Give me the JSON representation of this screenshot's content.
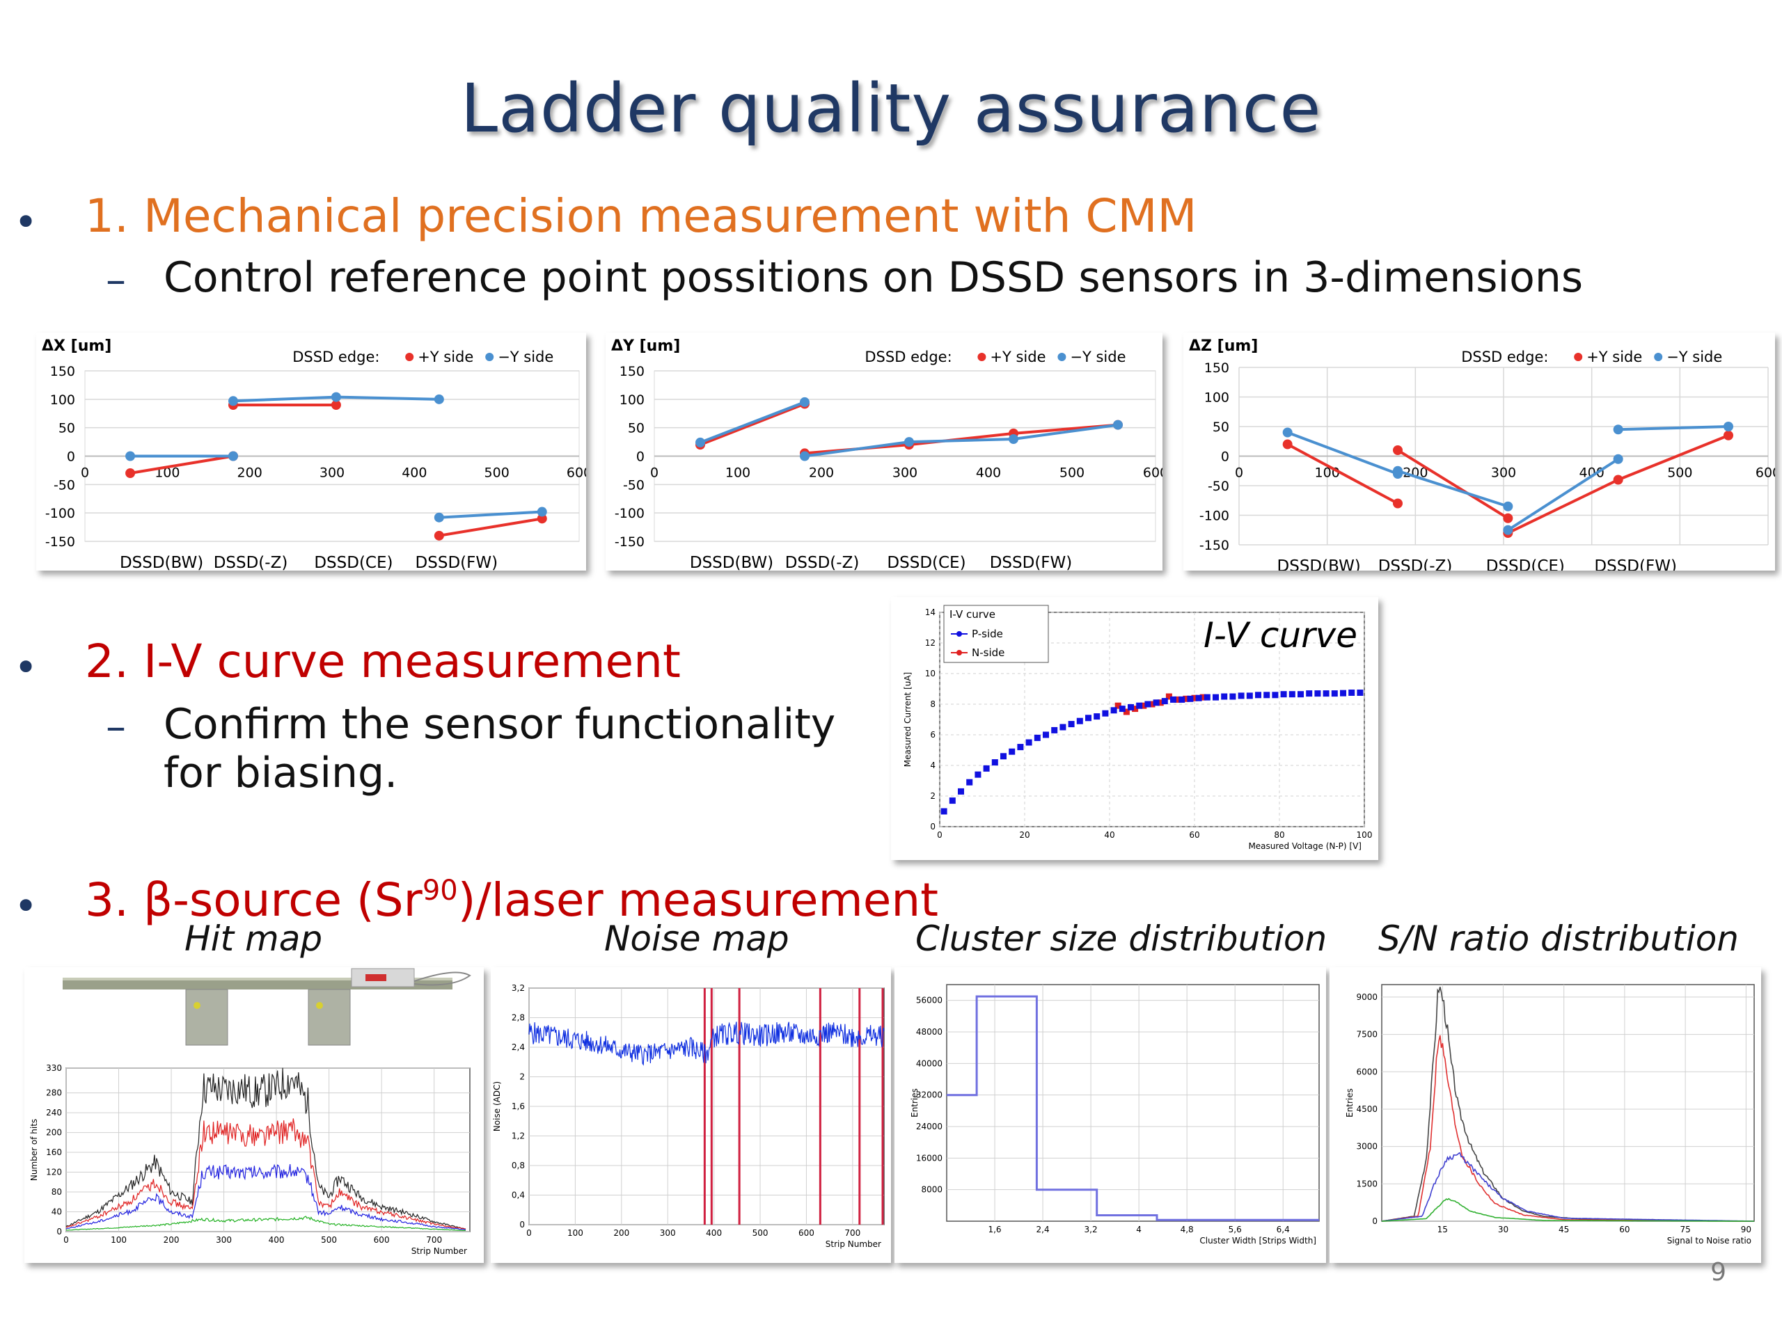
{
  "slide": {
    "title": "Ladder quality assurance",
    "page_number": "9",
    "sections": [
      {
        "bullet": "•",
        "heading": "1. Mechanical precision measurement with CMM",
        "dash": "–",
        "sub": "Control reference point possitions on DSSD sensors in 3-dimensions",
        "color": "#e07020"
      },
      {
        "bullet": "•",
        "heading": "2. I-V curve measurement",
        "dash": "–",
        "sub_line1": "Confirm the sensor functionality",
        "sub_line2": "for biasing.",
        "color": "#c00000"
      },
      {
        "bullet": "•",
        "heading_prefix": "3. β-source (Sr",
        "heading_sup": "90",
        "heading_suffix": ")/laser measurement",
        "color": "#c00000"
      }
    ],
    "captions": {
      "iv": "I-V curve",
      "hitmap": "Hit map",
      "noise": "Noise map",
      "cluster": "Cluster size distribution",
      "sn": "S/N ratio distribution"
    }
  },
  "chart_data": [
    {
      "type": "line",
      "ylabel": "ΔX [um]",
      "legend_prefix": "DSSD edge:",
      "series_names": [
        "+Y side",
        "−Y side"
      ],
      "colors": [
        "#e8312a",
        "#4a90d0"
      ],
      "xlim": [
        0,
        600
      ],
      "ylim": [
        -150,
        150
      ],
      "xticks": [
        0,
        100,
        200,
        300,
        400,
        500,
        600
      ],
      "yticks": [
        150,
        100,
        50,
        0,
        -50,
        -100,
        -150
      ],
      "sensor_labels": [
        "DSSD(BW)",
        "DSSD(-Z)",
        "DSSD(CE)",
        "DSSD(FW)"
      ],
      "segments": [
        {
          "series": 0,
          "points": [
            [
              55,
              -30
            ],
            [
              180,
              0
            ]
          ]
        },
        {
          "series": 1,
          "points": [
            [
              55,
              0
            ],
            [
              180,
              0
            ]
          ]
        },
        {
          "series": 0,
          "points": [
            [
              180,
              90
            ],
            [
              305,
              90
            ]
          ]
        },
        {
          "series": 1,
          "points": [
            [
              180,
              97
            ],
            [
              305,
              104
            ],
            [
              430,
              100
            ]
          ]
        },
        {
          "series": 0,
          "points": [
            [
              430,
              -140
            ],
            [
              555,
              -110
            ]
          ]
        },
        {
          "series": 1,
          "points": [
            [
              430,
              -108
            ],
            [
              555,
              -98
            ]
          ]
        }
      ]
    },
    {
      "type": "line",
      "ylabel": "ΔY [um]",
      "legend_prefix": "DSSD edge:",
      "series_names": [
        "+Y side",
        "−Y side"
      ],
      "colors": [
        "#e8312a",
        "#4a90d0"
      ],
      "xlim": [
        0,
        600
      ],
      "ylim": [
        -150,
        150
      ],
      "xticks": [
        0,
        100,
        200,
        300,
        400,
        500,
        600
      ],
      "yticks": [
        150,
        100,
        50,
        0,
        -50,
        -100,
        -150
      ],
      "sensor_labels": [
        "DSSD(BW)",
        "DSSD(-Z)",
        "DSSD(CE)",
        "DSSD(FW)"
      ],
      "segments": [
        {
          "series": 0,
          "points": [
            [
              55,
              20
            ],
            [
              180,
              92
            ]
          ]
        },
        {
          "series": 1,
          "points": [
            [
              55,
              24
            ],
            [
              180,
              95
            ]
          ]
        },
        {
          "series": 0,
          "points": [
            [
              180,
              5
            ],
            [
              305,
              20
            ],
            [
              430,
              40
            ],
            [
              555,
              55
            ]
          ]
        },
        {
          "series": 1,
          "points": [
            [
              180,
              0
            ],
            [
              305,
              25
            ],
            [
              430,
              30
            ],
            [
              555,
              55
            ]
          ]
        }
      ]
    },
    {
      "type": "line",
      "ylabel": "ΔZ [um]",
      "legend_prefix": "DSSD edge:",
      "series_names": [
        "+Y side",
        "−Y side"
      ],
      "colors": [
        "#e8312a",
        "#4a90d0"
      ],
      "xlim": [
        0,
        600
      ],
      "ylim": [
        -150,
        150
      ],
      "xticks": [
        0,
        100,
        200,
        300,
        400,
        500,
        600
      ],
      "yticks": [
        150,
        100,
        50,
        0,
        -50,
        -100,
        -150
      ],
      "sensor_labels": [
        "DSSD(BW)",
        "DSSD(-Z)",
        "DSSD(CE)",
        "DSSD(FW)"
      ],
      "grid": true,
      "segments": [
        {
          "series": 0,
          "points": [
            [
              55,
              20
            ],
            [
              180,
              -80
            ]
          ]
        },
        {
          "series": 1,
          "points": [
            [
              55,
              40
            ],
            [
              180,
              -30
            ]
          ]
        },
        {
          "series": 0,
          "points": [
            [
              180,
              10
            ],
            [
              305,
              -105
            ]
          ]
        },
        {
          "series": 1,
          "points": [
            [
              180,
              -25
            ],
            [
              305,
              -85
            ]
          ]
        },
        {
          "series": 0,
          "points": [
            [
              305,
              -130
            ],
            [
              430,
              -40
            ],
            [
              555,
              35
            ]
          ]
        },
        {
          "series": 1,
          "points": [
            [
              305,
              -125
            ],
            [
              430,
              -5
            ]
          ]
        },
        {
          "series": 1,
          "points": [
            [
              430,
              45
            ],
            [
              555,
              50
            ]
          ]
        }
      ]
    },
    {
      "type": "scatter",
      "title": "I-V curve",
      "xlabel": "Measured Voltage (N-P) [V]",
      "ylabel": "Measured Current [uA]",
      "xlim": [
        0,
        100
      ],
      "ylim": [
        0,
        14
      ],
      "xticks": [
        0,
        20,
        40,
        60,
        80,
        100
      ],
      "yticks": [
        0,
        2,
        4,
        6,
        8,
        10,
        12,
        14
      ],
      "legend_title": "I-V curve",
      "series": [
        {
          "name": "P-side",
          "color": "#1010e0",
          "x": [
            1,
            3,
            5,
            7,
            9,
            11,
            13,
            15,
            17,
            19,
            21,
            23,
            25,
            27,
            29,
            31,
            33,
            35,
            37,
            39,
            41,
            43,
            45,
            47,
            49,
            51,
            53,
            55,
            57,
            59,
            61,
            63,
            65,
            67,
            69,
            71,
            73,
            75,
            77,
            79,
            81,
            83,
            85,
            87,
            89,
            91,
            93,
            95,
            97,
            99
          ],
          "y": [
            1.0,
            1.7,
            2.3,
            2.9,
            3.4,
            3.8,
            4.2,
            4.6,
            4.9,
            5.2,
            5.5,
            5.8,
            6.0,
            6.3,
            6.5,
            6.7,
            6.9,
            7.1,
            7.2,
            7.4,
            7.6,
            7.7,
            7.8,
            7.9,
            8.0,
            8.1,
            8.2,
            8.3,
            8.3,
            8.35,
            8.4,
            8.45,
            8.45,
            8.5,
            8.5,
            8.55,
            8.55,
            8.6,
            8.6,
            8.6,
            8.65,
            8.65,
            8.65,
            8.7,
            8.7,
            8.7,
            8.7,
            8.72,
            8.75,
            8.75
          ]
        },
        {
          "name": "N-side",
          "color": "#e02020",
          "x": [
            42,
            44,
            46,
            48,
            50,
            52,
            54,
            56,
            58,
            60,
            62
          ],
          "y": [
            7.9,
            7.5,
            7.7,
            7.9,
            8.0,
            8.1,
            8.5,
            8.3,
            8.35,
            8.4,
            8.45
          ]
        }
      ]
    },
    {
      "type": "line",
      "title": "Hit map",
      "xlabel": "Strip Number",
      "ylabel": "Number of hits",
      "xlim": [
        0,
        768
      ],
      "ylim": [
        0,
        330
      ],
      "xticks": [
        0,
        100,
        200,
        300,
        400,
        500,
        600,
        700
      ],
      "yticks": [
        0,
        40,
        80,
        120,
        160,
        200,
        240,
        280,
        330
      ],
      "series": [
        {
          "color": "#222222",
          "x": [
            0,
            60,
            120,
            170,
            200,
            240,
            260,
            280,
            300,
            330,
            360,
            400,
            430,
            460,
            480,
            500,
            520,
            560,
            600,
            640,
            700,
            760
          ],
          "y": [
            10,
            40,
            90,
            140,
            80,
            60,
            290,
            290,
            285,
            290,
            280,
            290,
            310,
            260,
            90,
            70,
            110,
            70,
            50,
            40,
            20,
            5
          ]
        },
        {
          "color": "#e02020",
          "x": [
            0,
            60,
            120,
            170,
            200,
            240,
            260,
            300,
            360,
            400,
            430,
            460,
            480,
            500,
            520,
            560,
            600,
            640,
            700,
            760
          ],
          "y": [
            8,
            30,
            60,
            100,
            60,
            45,
            200,
            200,
            195,
            200,
            205,
            180,
            60,
            50,
            80,
            50,
            40,
            30,
            15,
            5
          ]
        },
        {
          "color": "#2020e0",
          "x": [
            0,
            60,
            120,
            170,
            200,
            240,
            260,
            300,
            360,
            400,
            430,
            460,
            480,
            500,
            520,
            560,
            600,
            640,
            700,
            760
          ],
          "y": [
            6,
            20,
            40,
            70,
            40,
            30,
            120,
            120,
            118,
            120,
            122,
            110,
            40,
            35,
            50,
            35,
            25,
            20,
            10,
            4
          ]
        },
        {
          "color": "#20b020",
          "x": [
            0,
            100,
            200,
            260,
            300,
            400,
            460,
            500,
            600,
            700,
            760
          ],
          "y": [
            3,
            8,
            15,
            25,
            22,
            25,
            28,
            15,
            10,
            5,
            2
          ]
        }
      ]
    },
    {
      "type": "line",
      "title": "Noise map",
      "xlabel": "Strip Number",
      "ylabel": "Noise (ADC)",
      "xlim": [
        0,
        768
      ],
      "ylim": [
        0,
        3.2
      ],
      "xticks": [
        0,
        100,
        200,
        300,
        400,
        500,
        600,
        700
      ],
      "yticks": [
        0,
        0.4,
        0.8,
        1.2,
        1.6,
        2,
        2.4,
        2.8,
        3.2
      ],
      "series": [
        {
          "color": "#1030e0",
          "x": [
            0,
            50,
            100,
            150,
            200,
            250,
            300,
            350,
            384,
            400,
            450,
            500,
            550,
            600,
            650,
            700,
            768
          ],
          "y": [
            2.6,
            2.55,
            2.5,
            2.45,
            2.35,
            2.3,
            2.35,
            2.4,
            2.3,
            2.55,
            2.6,
            2.55,
            2.6,
            2.55,
            2.6,
            2.55,
            2.55
          ]
        }
      ],
      "markers_x": [
        380,
        395,
        455,
        630,
        715,
        765
      ]
    },
    {
      "type": "line",
      "title": "Cluster size distribution",
      "xlabel": "Cluster Width [Strips Width]",
      "ylabel": "Entries",
      "xlim": [
        0.8,
        7
      ],
      "ylim": [
        0,
        60000
      ],
      "xticks": [
        1.6,
        2.4,
        3.2,
        4,
        4.8,
        5.6,
        6.4
      ],
      "yticks": [
        8000,
        16000,
        24000,
        32000,
        40000,
        48000,
        56000
      ],
      "steps": [
        [
          0.8,
          32000
        ],
        [
          1.3,
          32000
        ],
        [
          1.3,
          57000
        ],
        [
          2.3,
          57000
        ],
        [
          2.3,
          8000
        ],
        [
          3.3,
          8000
        ],
        [
          3.3,
          1500
        ],
        [
          4.3,
          1500
        ],
        [
          4.3,
          300
        ],
        [
          7,
          300
        ]
      ]
    },
    {
      "type": "line",
      "title": "S/N ratio distribution",
      "xlabel": "Signal to Noise ratio",
      "ylabel": "Entries",
      "xlim": [
        0,
        92
      ],
      "ylim": [
        0,
        9500
      ],
      "xticks": [
        15,
        30,
        45,
        60,
        75,
        90
      ],
      "yticks": [
        0,
        1500,
        3000,
        4500,
        6000,
        7500,
        9000
      ],
      "series": [
        {
          "color": "#444444",
          "x": [
            0,
            8,
            11,
            13,
            14,
            15,
            16,
            17,
            19,
            22,
            25,
            30,
            35,
            40,
            50,
            60,
            92
          ],
          "y": [
            0,
            200,
            2500,
            7000,
            9500,
            9000,
            8000,
            6500,
            4500,
            3000,
            2000,
            900,
            400,
            200,
            80,
            20,
            0
          ]
        },
        {
          "color": "#e03030",
          "x": [
            0,
            9,
            12,
            14,
            15,
            16,
            18,
            20,
            24,
            28,
            35,
            45,
            92
          ],
          "y": [
            0,
            200,
            3000,
            7500,
            7000,
            6000,
            4000,
            2600,
            1500,
            700,
            250,
            60,
            0
          ]
        },
        {
          "color": "#4040d0",
          "x": [
            0,
            10,
            13,
            16,
            19,
            22,
            26,
            30,
            36,
            45,
            92
          ],
          "y": [
            0,
            200,
            1500,
            2500,
            2700,
            2200,
            1500,
            900,
            400,
            120,
            0
          ]
        },
        {
          "color": "#30b030",
          "x": [
            0,
            11,
            14,
            16,
            18,
            22,
            28,
            40,
            92
          ],
          "y": [
            0,
            100,
            600,
            900,
            800,
            400,
            150,
            30,
            0
          ]
        }
      ]
    }
  ]
}
